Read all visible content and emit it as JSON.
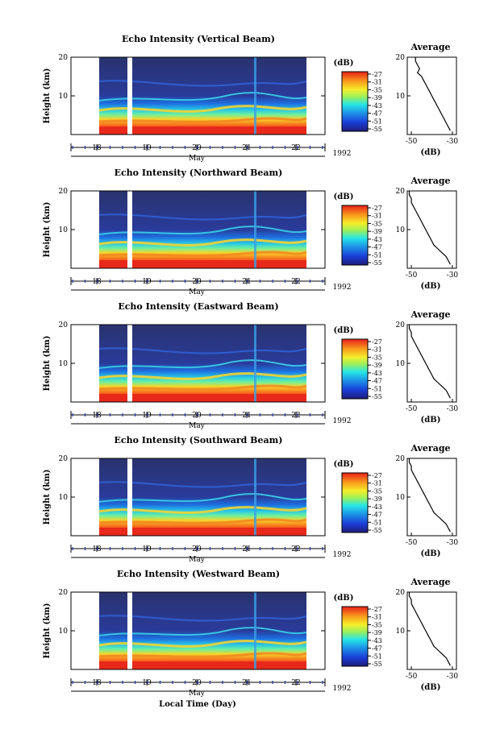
{
  "figure": {
    "bottom_xlabel": "Local Time (Day)"
  },
  "chart_data": [
    {
      "type": "heatmap",
      "title": "Echo Intensity (Vertical Beam)",
      "ylabel": "Height (km)",
      "ylim": [
        0,
        20
      ],
      "yticks": [
        10,
        20
      ],
      "xticks": [
        "18",
        "19",
        "20",
        "21",
        "22"
      ],
      "month_label": "May",
      "year_label": "1992",
      "colorbar": {
        "unit": "(dB)",
        "ticks": [
          "-27",
          "-31",
          "-35",
          "-39",
          "-43",
          "-47",
          "-51",
          "-55"
        ]
      },
      "average_profile": {
        "title": "Average",
        "xlabel": "(dB)",
        "xticks": [
          "-50",
          "-30"
        ],
        "ylim": [
          0,
          20
        ],
        "yticks": [
          10,
          20
        ],
        "xlim": [
          -52,
          -28
        ],
        "x": [
          -48,
          -48,
          -47,
          -46,
          -47,
          -45,
          -44,
          -43,
          -42,
          -41,
          -40,
          -39,
          -38,
          -37,
          -36,
          -35,
          -34,
          -33,
          -31
        ],
        "y": [
          20,
          19,
          18,
          17,
          16,
          15,
          14,
          13,
          12,
          11,
          10,
          9,
          8,
          7,
          6,
          5,
          4,
          3,
          1
        ]
      }
    },
    {
      "type": "heatmap",
      "title": "Echo Intensity (Northward Beam)",
      "ylabel": "Height (km)",
      "ylim": [
        0,
        20
      ],
      "yticks": [
        10,
        20
      ],
      "xticks": [
        "18",
        "19",
        "20",
        "21",
        "22"
      ],
      "month_label": "May",
      "year_label": "1992",
      "colorbar": {
        "unit": "(dB)",
        "ticks": [
          "-27",
          "-31",
          "-35",
          "-39",
          "-43",
          "-47",
          "-51",
          "-55"
        ]
      },
      "average_profile": {
        "title": "Average",
        "xlabel": "(dB)",
        "xticks": [
          "-50",
          "-30"
        ],
        "ylim": [
          0,
          20
        ],
        "yticks": [
          10,
          20
        ],
        "xlim": [
          -52,
          -28
        ],
        "x": [
          -51,
          -51,
          -50,
          -50,
          -49,
          -48,
          -47,
          -46,
          -45,
          -44,
          -43,
          -42,
          -41,
          -40,
          -39,
          -37,
          -35,
          -33,
          -31
        ],
        "y": [
          20,
          19,
          18,
          17,
          16,
          15,
          14,
          13,
          12,
          11,
          10,
          9,
          8,
          7,
          6,
          5,
          4,
          3,
          1
        ]
      }
    },
    {
      "type": "heatmap",
      "title": "Echo Intensity (Eastward Beam)",
      "ylabel": "Height (km)",
      "ylim": [
        0,
        20
      ],
      "yticks": [
        10,
        20
      ],
      "xticks": [
        "18",
        "19",
        "20",
        "21",
        "22"
      ],
      "month_label": "May",
      "year_label": "1992",
      "colorbar": {
        "unit": "(dB)",
        "ticks": [
          "-27",
          "-31",
          "-35",
          "-39",
          "-43",
          "-47",
          "-51",
          "-55"
        ]
      },
      "average_profile": {
        "title": "Average",
        "xlabel": "(dB)",
        "xticks": [
          "-50",
          "-30"
        ],
        "ylim": [
          0,
          20
        ],
        "yticks": [
          10,
          20
        ],
        "xlim": [
          -52,
          -28
        ],
        "x": [
          -51,
          -51,
          -50,
          -50,
          -49,
          -48,
          -47,
          -46,
          -45,
          -44,
          -43,
          -42,
          -41,
          -40,
          -39,
          -37,
          -35,
          -33,
          -31
        ],
        "y": [
          20,
          19,
          18,
          17,
          16,
          15,
          14,
          13,
          12,
          11,
          10,
          9,
          8,
          7,
          6,
          5,
          4,
          3,
          1
        ]
      }
    },
    {
      "type": "heatmap",
      "title": "Echo Intensity (Southward Beam)",
      "ylabel": "Height (km)",
      "ylim": [
        0,
        20
      ],
      "yticks": [
        10,
        20
      ],
      "xticks": [
        "18",
        "19",
        "20",
        "21",
        "22"
      ],
      "month_label": "May",
      "year_label": "1992",
      "colorbar": {
        "unit": "(dB)",
        "ticks": [
          "-27",
          "-31",
          "-35",
          "-39",
          "-43",
          "-47",
          "-51",
          "-55"
        ]
      },
      "average_profile": {
        "title": "Average",
        "xlabel": "(dB)",
        "xticks": [
          "-50",
          "-30"
        ],
        "ylim": [
          0,
          20
        ],
        "yticks": [
          10,
          20
        ],
        "xlim": [
          -52,
          -28
        ],
        "x": [
          -51,
          -51,
          -50,
          -50,
          -49,
          -48,
          -47,
          -46,
          -45,
          -44,
          -43,
          -42,
          -41,
          -40,
          -39,
          -37,
          -35,
          -33,
          -31
        ],
        "y": [
          20,
          19,
          18,
          17,
          16,
          15,
          14,
          13,
          12,
          11,
          10,
          9,
          8,
          7,
          6,
          5,
          4,
          3,
          1
        ]
      }
    },
    {
      "type": "heatmap",
      "title": "Echo Intensity (Westward Beam)",
      "ylabel": "Height (km)",
      "ylim": [
        0,
        20
      ],
      "yticks": [
        10,
        20
      ],
      "xticks": [
        "18",
        "19",
        "20",
        "21",
        "22"
      ],
      "month_label": "May",
      "year_label": "1992",
      "colorbar": {
        "unit": "(dB)",
        "ticks": [
          "-27",
          "-31",
          "-35",
          "-39",
          "-43",
          "-47",
          "-51",
          "-55"
        ]
      },
      "average_profile": {
        "title": "Average",
        "xlabel": "(dB)",
        "xticks": [
          "-50",
          "-30"
        ],
        "ylim": [
          0,
          20
        ],
        "yticks": [
          10,
          20
        ],
        "xlim": [
          -52,
          -28
        ],
        "x": [
          -51,
          -51,
          -50,
          -50,
          -49,
          -48,
          -47,
          -46,
          -45,
          -44,
          -43,
          -42,
          -41,
          -40,
          -39,
          -37,
          -35,
          -33,
          -31
        ],
        "y": [
          20,
          19,
          18,
          17,
          16,
          15,
          14,
          13,
          12,
          11,
          10,
          9,
          8,
          7,
          6,
          5,
          4,
          3,
          1
        ]
      }
    }
  ]
}
